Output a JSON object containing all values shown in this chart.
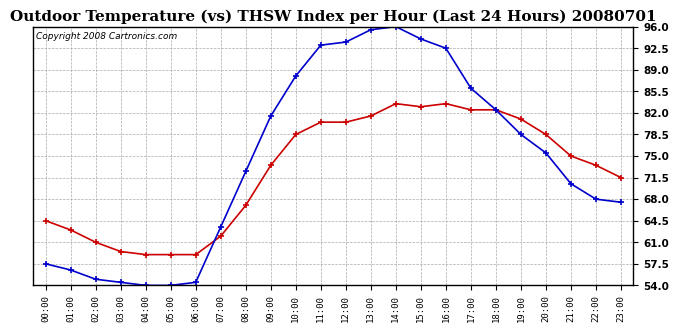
{
  "title": "Outdoor Temperature (vs) THSW Index per Hour (Last 24 Hours) 20080701",
  "copyright": "Copyright 2008 Cartronics.com",
  "hours": [
    "00:00",
    "01:00",
    "02:00",
    "03:00",
    "04:00",
    "05:00",
    "06:00",
    "07:00",
    "08:00",
    "09:00",
    "10:00",
    "11:00",
    "12:00",
    "13:00",
    "14:00",
    "15:00",
    "16:00",
    "17:00",
    "18:00",
    "19:00",
    "20:00",
    "21:00",
    "22:00",
    "23:00"
  ],
  "outdoor_temp": [
    64.5,
    63.0,
    61.0,
    59.5,
    59.0,
    59.0,
    59.0,
    62.0,
    67.0,
    73.5,
    78.5,
    80.5,
    80.5,
    81.5,
    83.5,
    83.0,
    83.5,
    82.5,
    82.5,
    81.0,
    78.5,
    75.0,
    73.5,
    71.5
  ],
  "thsw_index": [
    57.5,
    56.5,
    55.0,
    54.5,
    54.0,
    54.0,
    54.5,
    63.5,
    72.5,
    81.5,
    88.0,
    93.0,
    93.5,
    95.5,
    96.0,
    94.0,
    92.5,
    86.0,
    82.5,
    78.5,
    75.5,
    70.5,
    68.0,
    67.5
  ],
  "temp_color": "#cc0000",
  "thsw_color": "#0000cc",
  "ylim": [
    54.0,
    96.0
  ],
  "yticks": [
    54.0,
    57.5,
    61.0,
    64.5,
    68.0,
    71.5,
    75.0,
    78.5,
    82.0,
    85.5,
    89.0,
    92.5,
    96.0
  ],
  "bg_color": "#ffffff",
  "grid_color": "#aaaaaa",
  "title_fontsize": 11,
  "copyright_fontsize": 6.5,
  "marker": "+",
  "marker_size": 5,
  "marker_linewidth": 1.2,
  "linewidth": 1.2
}
